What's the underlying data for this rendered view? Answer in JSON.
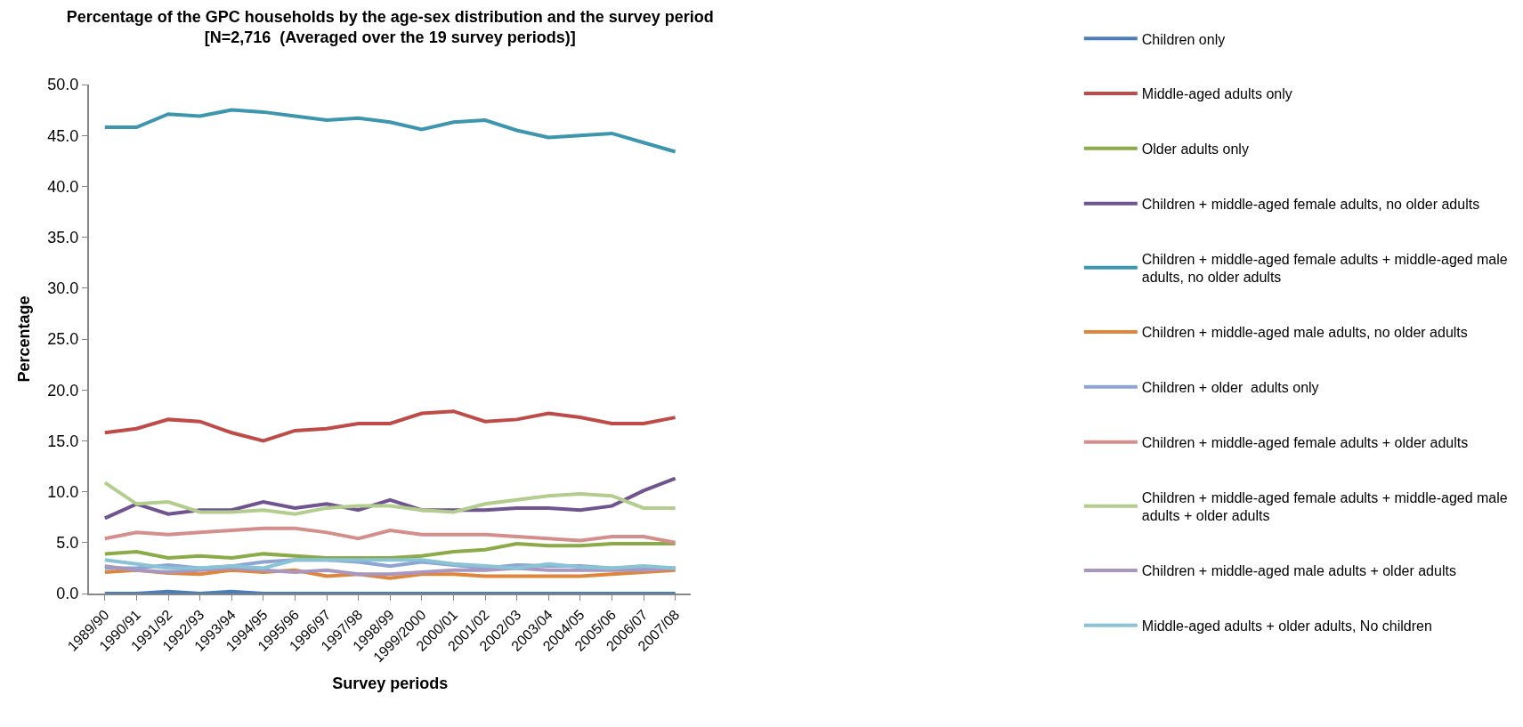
{
  "chart_data": {
    "type": "line",
    "title": "Percentage of the GPC households by the age-sex distribution and the survey period\n[N=2,716  (Averaged over the 19 survey periods)]",
    "xlabel": "Survey periods",
    "ylabel": "Percentage",
    "categories": [
      "1989/90",
      "1990/91",
      "1991/92",
      "1992/93",
      "1993/94",
      "1994/95",
      "1995/96",
      "1996/97",
      "1997/98",
      "1998/99",
      "1999/2000",
      "2000/01",
      "2001/02",
      "2002/03",
      "2003/04",
      "2004/05",
      "2005/06",
      "2006/07",
      "2007/08"
    ],
    "ylim": [
      0,
      50
    ],
    "yticks": [
      {
        "value": 0,
        "label": "0.0"
      },
      {
        "value": 5,
        "label": "5.0"
      },
      {
        "value": 10,
        "label": "10.0"
      },
      {
        "value": 15,
        "label": "15.0"
      },
      {
        "value": 20,
        "label": "20.0"
      },
      {
        "value": 25,
        "label": "25.0"
      },
      {
        "value": 30,
        "label": "30.0"
      },
      {
        "value": 35,
        "label": "35.0"
      },
      {
        "value": 40,
        "label": "40.0"
      },
      {
        "value": 45,
        "label": "45.0"
      },
      {
        "value": 50,
        "label": "50.0"
      }
    ],
    "grid": false,
    "legend": "right",
    "marker": "none",
    "line_style": "solid",
    "series": [
      {
        "name": "Children only",
        "color": "#4a7ebb",
        "values": [
          0.0,
          0.0,
          0.2,
          0.0,
          0.2,
          0.0,
          0.0,
          0.0,
          0.0,
          0.0,
          0.0,
          0.0,
          0.0,
          0.0,
          0.0,
          0.0,
          0.0,
          0.0,
          0.0
        ]
      },
      {
        "name": "Middle-aged adults only",
        "color": "#be4b48",
        "values": [
          15.8,
          16.2,
          17.1,
          16.9,
          15.8,
          15.0,
          16.0,
          16.2,
          16.7,
          16.7,
          17.7,
          17.9,
          16.9,
          17.1,
          17.7,
          17.3,
          16.7,
          16.7,
          17.3
        ]
      },
      {
        "name": "Older adults only",
        "color": "#8aab48",
        "values": [
          3.9,
          4.1,
          3.5,
          3.7,
          3.5,
          3.9,
          3.7,
          3.5,
          3.5,
          3.5,
          3.7,
          4.1,
          4.3,
          4.9,
          4.7,
          4.7,
          4.9,
          4.9,
          4.9
        ]
      },
      {
        "name": "Children + middle-aged female adults, no older adults",
        "color": "#6f548f",
        "values": [
          7.4,
          8.8,
          7.8,
          8.2,
          8.2,
          9.0,
          8.4,
          8.8,
          8.2,
          9.2,
          8.2,
          8.2,
          8.2,
          8.4,
          8.4,
          8.2,
          8.6,
          10.1,
          11.3
        ]
      },
      {
        "name": "Children + middle-aged female adults + middle-aged male adults, no older adults",
        "color": "#3d96ae",
        "values": [
          45.8,
          45.8,
          47.1,
          46.9,
          47.5,
          47.3,
          46.9,
          46.5,
          46.7,
          46.3,
          45.6,
          46.3,
          46.5,
          45.5,
          44.8,
          45.0,
          45.2,
          44.3,
          43.4
        ]
      },
      {
        "name": "Children + middle-aged male adults, no older adults",
        "color": "#e0863a",
        "values": [
          2.1,
          2.3,
          2.0,
          1.9,
          2.3,
          2.1,
          2.3,
          1.7,
          1.9,
          1.5,
          1.9,
          1.9,
          1.7,
          1.7,
          1.7,
          1.7,
          1.9,
          2.1,
          2.3
        ]
      },
      {
        "name": "Children + older  adults only",
        "color": "#8ea5d4",
        "values": [
          2.5,
          2.5,
          2.8,
          2.5,
          2.7,
          3.1,
          3.3,
          3.3,
          3.1,
          2.7,
          3.1,
          2.8,
          2.5,
          2.8,
          2.7,
          2.7,
          2.5,
          2.5,
          2.5
        ]
      },
      {
        "name": "Children + middle-aged female adults + older adults",
        "color": "#d48e8c",
        "values": [
          5.4,
          6.0,
          5.8,
          6.0,
          6.2,
          6.4,
          6.4,
          6.0,
          5.4,
          6.2,
          5.8,
          5.8,
          5.8,
          5.6,
          5.4,
          5.2,
          5.6,
          5.6,
          5.0
        ]
      },
      {
        "name": "Children + middle-aged female adults + middle-aged male adults + older adults",
        "color": "#b3cd8f",
        "values": [
          10.9,
          8.8,
          9.0,
          8.0,
          8.0,
          8.2,
          7.8,
          8.4,
          8.6,
          8.6,
          8.2,
          8.0,
          8.8,
          9.2,
          9.6,
          9.8,
          9.6,
          8.4,
          8.4
        ]
      },
      {
        "name": "Children + middle-aged male adults + older adults",
        "color": "#a897c0",
        "values": [
          2.7,
          2.3,
          2.1,
          2.3,
          2.5,
          2.3,
          2.1,
          2.3,
          1.9,
          1.9,
          2.1,
          2.3,
          2.3,
          2.5,
          2.3,
          2.3,
          2.3,
          2.3,
          2.5
        ]
      },
      {
        "name": "Middle-aged adults + older adults, No children",
        "color": "#8ac3d6",
        "values": [
          3.3,
          2.9,
          2.5,
          2.5,
          2.7,
          2.5,
          3.3,
          3.3,
          3.3,
          3.3,
          3.3,
          2.9,
          2.7,
          2.5,
          2.9,
          2.6,
          2.5,
          2.7,
          2.5
        ]
      }
    ]
  }
}
